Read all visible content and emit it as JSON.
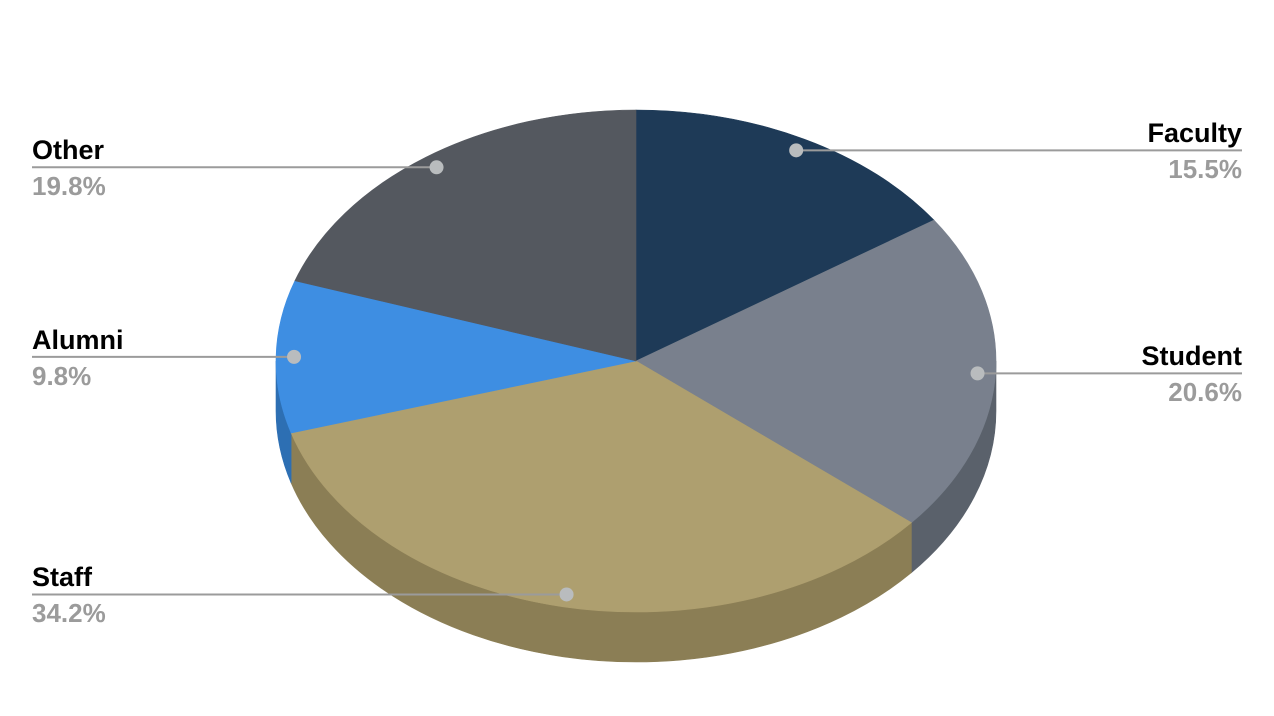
{
  "chart_data": {
    "type": "pie",
    "style": "3d",
    "title": "",
    "legend_position": "none",
    "background_color": "#ffffff",
    "label_text_color": "#000000",
    "pct_text_color": "#9b9b9b",
    "leader_line_color": "#9b9b9b",
    "leader_dot_color": "#b9bcbe",
    "start_angle_deg": 0,
    "direction": "clockwise",
    "categories": [
      "Faculty",
      "Student",
      "Staff",
      "Alumni",
      "Other"
    ],
    "values": [
      15.5,
      20.6,
      34.2,
      9.8,
      19.8
    ],
    "slices": [
      {
        "label": "Faculty",
        "value": 15.5,
        "pct_label": "15.5%",
        "color": "#1e3a57",
        "side_color": "#142a40",
        "label_side": "right"
      },
      {
        "label": "Student",
        "value": 20.6,
        "pct_label": "20.6%",
        "color": "#79808d",
        "side_color": "#5a616b",
        "label_side": "right"
      },
      {
        "label": "Staff",
        "value": 34.2,
        "pct_label": "34.2%",
        "color": "#ae9f6f",
        "side_color": "#8b7e55",
        "label_side": "left"
      },
      {
        "label": "Alumni",
        "value": 9.8,
        "pct_label": "9.8%",
        "color": "#3e8ee2",
        "side_color": "#2d6fb3",
        "label_side": "left"
      },
      {
        "label": "Other",
        "value": 19.8,
        "pct_label": "19.8%",
        "color": "#54585f",
        "side_color": "#3c3f45",
        "label_side": "left"
      }
    ]
  }
}
